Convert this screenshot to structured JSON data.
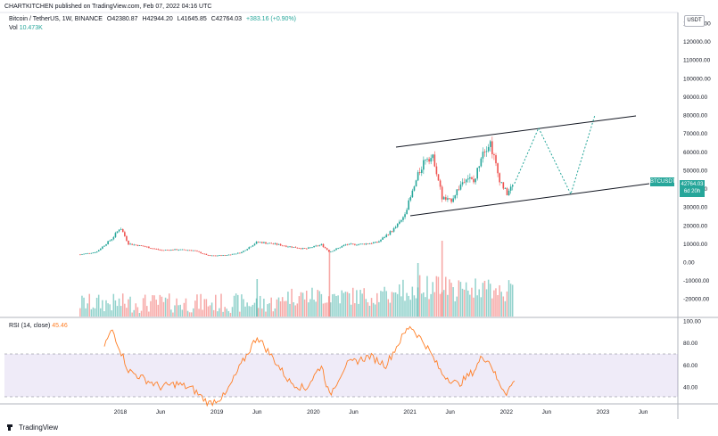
{
  "header": {
    "published_by": "CHARTKITCHEN published on TradingView.com, Feb 07, 2022 04:16 UTC"
  },
  "legend": {
    "symbol": "Bitcoin / TetherUS, 1W, BINANCE",
    "open": "O42380.87",
    "high": "H42944.20",
    "low": "L41645.85",
    "close": "C42764.03",
    "change": "+383.16 (+0.90%)",
    "vol_label": "Vol",
    "vol_value": "10.473K"
  },
  "rsi_legend": {
    "label": "RSI (14, close)",
    "value": "45.46"
  },
  "price_axis": {
    "unit_button": "USDT",
    "ticks": [
      "130000.00",
      "120000.00",
      "110000.00",
      "100000.00",
      "90000.00",
      "80000.00",
      "70000.00",
      "60000.00",
      "50000.00",
      "40000.00",
      "30000.00",
      "20000.00",
      "10000.00",
      "0.00",
      "-10000.00",
      "-20000.00"
    ],
    "symbol_badge": "BTCUSDT",
    "last_price": "42764.03",
    "countdown": "6d 20h"
  },
  "rsi_axis": {
    "ticks": [
      "100.00",
      "80.00",
      "60.00",
      "40.00"
    ]
  },
  "time_axis": {
    "ticks": [
      "2018",
      "Jun",
      "2019",
      "Jun",
      "2020",
      "Jun",
      "2021",
      "Jun",
      "2022",
      "Jun",
      "2023",
      "Jun"
    ]
  },
  "footer": {
    "brand": "TradingView"
  },
  "colors": {
    "up": "#26a69a",
    "down": "#ef5350",
    "rsi_line": "#ff7f27",
    "rsi_band": "#7e57c2",
    "channel": "#131722",
    "projection": "#26a69a"
  },
  "chart_data": {
    "type": "candlestick",
    "title": "Bitcoin / TetherUS, 1W, BINANCE",
    "x_range": [
      "2017-08",
      "2023-10"
    ],
    "price_range": [
      -25000,
      135000
    ],
    "grid": false,
    "weekly_close_approx": {
      "x": [
        "2017-08",
        "2017-10",
        "2017-12",
        "2018-01",
        "2018-02",
        "2018-04",
        "2018-06",
        "2018-08",
        "2018-10",
        "2018-12",
        "2019-02",
        "2019-04",
        "2019-06",
        "2019-08",
        "2019-10",
        "2019-12",
        "2020-02",
        "2020-03",
        "2020-05",
        "2020-07",
        "2020-09",
        "2020-11",
        "2020-12",
        "2021-01",
        "2021-02",
        "2021-03",
        "2021-04",
        "2021-05",
        "2021-06",
        "2021-07",
        "2021-08",
        "2021-09",
        "2021-10",
        "2021-11",
        "2021-12",
        "2022-01",
        "2022-02"
      ],
      "y": [
        4200,
        5500,
        13000,
        19000,
        10000,
        8500,
        6500,
        6800,
        6500,
        3500,
        3700,
        5200,
        11000,
        10000,
        8500,
        7200,
        9500,
        5500,
        9500,
        9800,
        10800,
        18000,
        23000,
        34000,
        47000,
        58000,
        56000,
        35000,
        33000,
        40000,
        47000,
        43000,
        61000,
        65000,
        47000,
        37000,
        42764
      ]
    },
    "volume_range": [
      0,
      120000
    ],
    "channel_upper": {
      "x": [
        "2020-12",
        "2023-09"
      ],
      "y": [
        61000,
        80000
      ]
    },
    "channel_lower": {
      "x": [
        "2021-01",
        "2023-09"
      ],
      "y": [
        25000,
        45000
      ]
    },
    "projection_path": {
      "x": [
        "2022-02",
        "2022-05",
        "2022-09",
        "2022-12"
      ],
      "y": [
        42764,
        73000,
        37000,
        80000
      ]
    },
    "rsi": {
      "label": "RSI (14, close)",
      "last": 45.46,
      "upper_band": 70,
      "lower_band": 30,
      "range": [
        20,
        100
      ]
    }
  }
}
